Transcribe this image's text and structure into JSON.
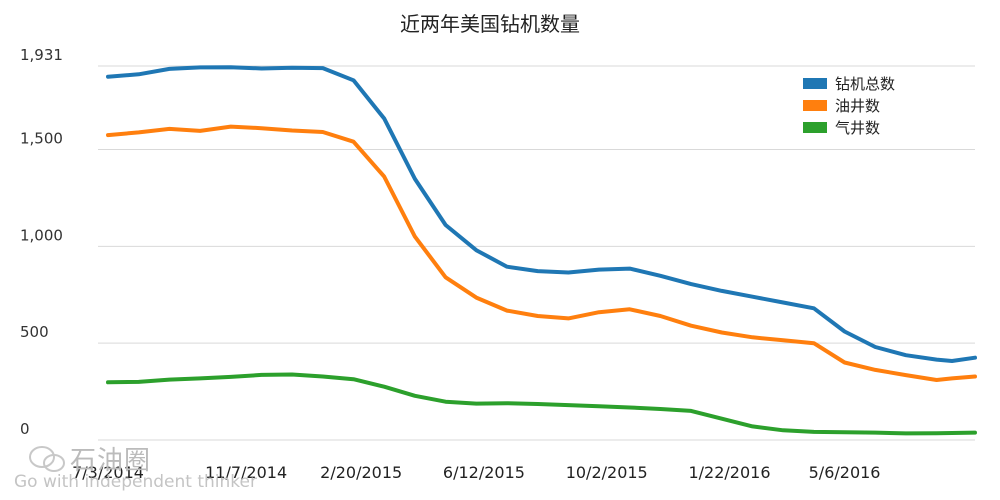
{
  "title": "近两年美国钻机数量",
  "watermark": {
    "logo_text": "石油圈",
    "slogan": "Go with independent thinker"
  },
  "colors": {
    "total": "#1f77b4",
    "oil": "#ff7f0e",
    "gas": "#2ca02c",
    "grid": "#d9d9d9"
  },
  "chart_data": {
    "type": "line",
    "title": "近两年美国钻机数量",
    "xlabel": "",
    "ylabel": "",
    "ylim": [
      0,
      1931
    ],
    "yticks": [
      {
        "value": 1931,
        "label": "1,931"
      },
      {
        "value": 1500,
        "label": "1,500"
      },
      {
        "value": 1000,
        "label": "1,000"
      },
      {
        "value": 500,
        "label": "500"
      },
      {
        "value": 0,
        "label": "0"
      }
    ],
    "xticks": [
      {
        "x": 0,
        "label": "7/3/2014"
      },
      {
        "x": 18,
        "label": "11/7/2014"
      },
      {
        "x": 33,
        "label": "2/20/2015"
      },
      {
        "x": 49,
        "label": "6/12/2015"
      },
      {
        "x": 65,
        "label": "10/2/2015"
      },
      {
        "x": 81,
        "label": "1/22/2016"
      },
      {
        "x": 96,
        "label": "5/6/2016"
      }
    ],
    "xlim": [
      0,
      113
    ],
    "legend_position": "top-right",
    "grid": true,
    "series": [
      {
        "name": "钻机总数",
        "color": "#1f77b4",
        "points": [
          [
            0,
            1876
          ],
          [
            4,
            1888
          ],
          [
            8,
            1916
          ],
          [
            12,
            1924
          ],
          [
            16,
            1925
          ],
          [
            20,
            1918
          ],
          [
            24,
            1922
          ],
          [
            28,
            1920
          ],
          [
            32,
            1857
          ],
          [
            36,
            1660
          ],
          [
            40,
            1348
          ],
          [
            44,
            1110
          ],
          [
            48,
            980
          ],
          [
            52,
            895
          ],
          [
            56,
            872
          ],
          [
            60,
            865
          ],
          [
            64,
            880
          ],
          [
            68,
            885
          ],
          [
            72,
            848
          ],
          [
            76,
            805
          ],
          [
            80,
            770
          ],
          [
            84,
            740
          ],
          [
            88,
            710
          ],
          [
            92,
            680
          ],
          [
            96,
            560
          ],
          [
            100,
            480
          ],
          [
            104,
            438
          ],
          [
            108,
            415
          ],
          [
            110,
            408
          ],
          [
            113,
            425
          ]
        ]
      },
      {
        "name": "油井数",
        "color": "#ff7f0e",
        "points": [
          [
            0,
            1574
          ],
          [
            4,
            1588
          ],
          [
            8,
            1606
          ],
          [
            12,
            1596
          ],
          [
            16,
            1618
          ],
          [
            20,
            1610
          ],
          [
            24,
            1598
          ],
          [
            28,
            1590
          ],
          [
            32,
            1540
          ],
          [
            36,
            1360
          ],
          [
            40,
            1050
          ],
          [
            44,
            840
          ],
          [
            48,
            735
          ],
          [
            52,
            668
          ],
          [
            56,
            640
          ],
          [
            60,
            628
          ],
          [
            64,
            660
          ],
          [
            68,
            675
          ],
          [
            72,
            640
          ],
          [
            76,
            590
          ],
          [
            80,
            555
          ],
          [
            84,
            530
          ],
          [
            88,
            515
          ],
          [
            92,
            500
          ],
          [
            96,
            400
          ],
          [
            100,
            362
          ],
          [
            104,
            335
          ],
          [
            108,
            310
          ],
          [
            110,
            318
          ],
          [
            113,
            328
          ]
        ]
      },
      {
        "name": "气井数",
        "color": "#2ca02c",
        "points": [
          [
            0,
            298
          ],
          [
            4,
            300
          ],
          [
            8,
            312
          ],
          [
            12,
            318
          ],
          [
            16,
            326
          ],
          [
            20,
            336
          ],
          [
            24,
            338
          ],
          [
            28,
            328
          ],
          [
            32,
            314
          ],
          [
            36,
            275
          ],
          [
            40,
            228
          ],
          [
            44,
            198
          ],
          [
            48,
            188
          ],
          [
            52,
            190
          ],
          [
            56,
            186
          ],
          [
            60,
            180
          ],
          [
            64,
            174
          ],
          [
            68,
            168
          ],
          [
            72,
            160
          ],
          [
            76,
            150
          ],
          [
            80,
            110
          ],
          [
            84,
            70
          ],
          [
            88,
            50
          ],
          [
            92,
            42
          ],
          [
            96,
            40
          ],
          [
            100,
            38
          ],
          [
            104,
            34
          ],
          [
            108,
            35
          ],
          [
            110,
            36
          ],
          [
            113,
            38
          ]
        ]
      }
    ]
  }
}
